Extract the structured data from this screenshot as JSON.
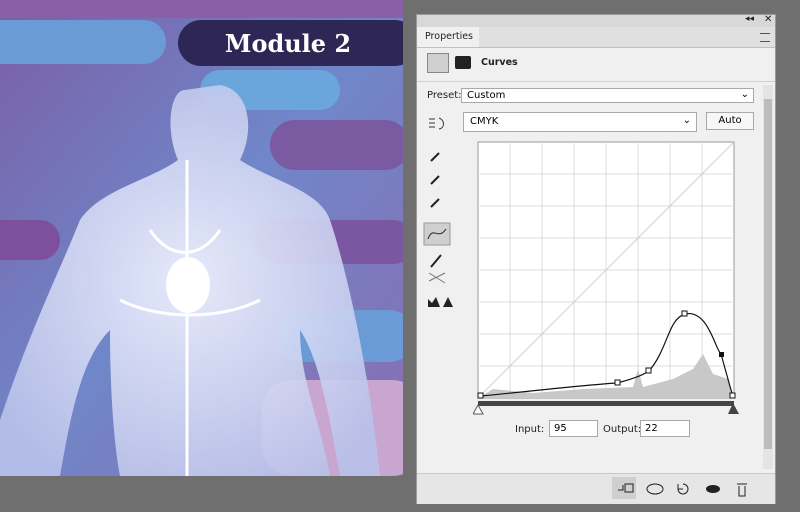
{
  "canvas": {
    "banner": "Module 2"
  },
  "panel": {
    "tab": "Properties",
    "adjustment": "Curves",
    "preset_label": "Preset:",
    "preset_value": "Custom",
    "channel": "CMYK",
    "auto_button": "Auto",
    "input_label": "Input:",
    "input_value": "95",
    "output_label": "Output:",
    "output_value": "22"
  }
}
